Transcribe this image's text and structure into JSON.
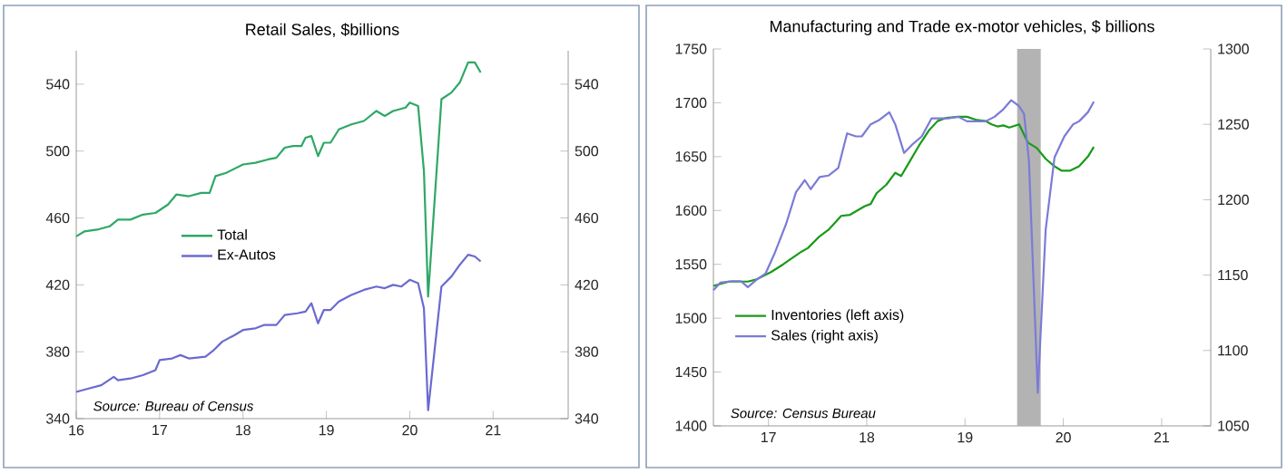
{
  "chart_data": [
    {
      "type": "line",
      "title": "Retail Sales, $billions",
      "xlim": [
        16,
        21.9
      ],
      "xticks": [
        16,
        17,
        18,
        19,
        20,
        21
      ],
      "ylim": [
        340,
        560
      ],
      "yticks": [
        340,
        380,
        420,
        460,
        500,
        540
      ],
      "y2lim": [
        340,
        560
      ],
      "y2ticks": [
        340,
        380,
        420,
        460,
        500,
        540
      ],
      "legend": "left",
      "annotations": [
        "Source: Bureau of Census"
      ],
      "series": [
        {
          "name": "Total",
          "color": "#2ea866",
          "x": [
            16.0,
            16.1,
            16.25,
            16.4,
            16.5,
            16.65,
            16.8,
            16.95,
            17.1,
            17.2,
            17.35,
            17.5,
            17.6,
            17.67,
            17.8,
            18.0,
            18.15,
            18.3,
            18.4,
            18.5,
            18.6,
            18.7,
            18.75,
            18.82,
            18.9,
            18.97,
            19.05,
            19.15,
            19.3,
            19.45,
            19.6,
            19.7,
            19.8,
            19.95,
            20.0,
            20.1,
            20.17,
            20.22,
            20.38,
            20.5,
            20.6,
            20.7,
            20.78,
            20.85
          ],
          "values": [
            449,
            452,
            453,
            455,
            459,
            459,
            462,
            463,
            468,
            474,
            473,
            475,
            475,
            485,
            487,
            492,
            493,
            495,
            496,
            502,
            503,
            503,
            508,
            509,
            497,
            505,
            505,
            513,
            516,
            518,
            524,
            521,
            524,
            526,
            529,
            527,
            488,
            413,
            531,
            535,
            541,
            553,
            553,
            547
          ]
        },
        {
          "name": "Ex-Autos",
          "color": "#6a6ad0",
          "x": [
            16.0,
            16.15,
            16.3,
            16.45,
            16.5,
            16.65,
            16.8,
            16.95,
            17.0,
            17.15,
            17.25,
            17.35,
            17.55,
            17.65,
            17.75,
            17.9,
            18.0,
            18.15,
            18.25,
            18.4,
            18.5,
            18.65,
            18.75,
            18.82,
            18.9,
            18.97,
            19.05,
            19.15,
            19.3,
            19.45,
            19.6,
            19.7,
            19.8,
            19.9,
            20.0,
            20.1,
            20.17,
            20.22,
            20.38,
            20.5,
            20.6,
            20.7,
            20.78,
            20.85
          ],
          "values": [
            356,
            358,
            360,
            365,
            363,
            364,
            366,
            369,
            375,
            376,
            378,
            376,
            377,
            381,
            386,
            390,
            393,
            394,
            396,
            396,
            402,
            403,
            404,
            409,
            397,
            405,
            405,
            410,
            414,
            417,
            419,
            418,
            420,
            419,
            423,
            421,
            406,
            345,
            419,
            425,
            432,
            438,
            437,
            434
          ]
        }
      ]
    },
    {
      "type": "line",
      "title": "Manufacturing and Trade ex-motor vehicles, $ billions",
      "xlim": [
        16.94,
        22
      ],
      "xticks": [
        {
          "value": 17.5,
          "label": "17"
        },
        {
          "value": 18.5,
          "label": "18"
        },
        {
          "value": 19.5,
          "label": "19"
        },
        {
          "value": 20.5,
          "label": "20"
        },
        {
          "value": 21.5,
          "label": "21"
        }
      ],
      "ylim": [
        1400,
        1750
      ],
      "yticks": [
        1400,
        1450,
        1500,
        1550,
        1600,
        1650,
        1700,
        1750
      ],
      "y2lim": [
        1050,
        1300
      ],
      "y2ticks": [
        1050,
        1100,
        1150,
        1200,
        1250,
        1300
      ],
      "legend": "bottom left",
      "annotations": [
        "Source: Census Bureau"
      ],
      "bands": [
        {
          "axis": "x",
          "from": 20.03,
          "to": 20.27,
          "color": "#b3b3b3"
        }
      ],
      "series": [
        {
          "name": "Inventories (left axis)",
          "color": "#189a18",
          "x": [
            16.94,
            17.1,
            17.29,
            17.38,
            17.53,
            17.65,
            17.84,
            17.9,
            18.02,
            18.11,
            18.24,
            18.33,
            18.48,
            18.54,
            18.6,
            18.7,
            18.79,
            18.85,
            18.94,
            19.03,
            19.13,
            19.22,
            19.31,
            19.43,
            19.52,
            19.62,
            19.71,
            19.77,
            19.83,
            19.89,
            19.95,
            20.05,
            20.14,
            20.23,
            20.32,
            20.41,
            20.48,
            20.57,
            20.66,
            20.75,
            20.81
          ],
          "values": [
            1530,
            1534,
            1534,
            1536,
            1543,
            1550,
            1562,
            1565,
            1576,
            1582,
            1595,
            1596,
            1604,
            1606,
            1616,
            1624,
            1635,
            1632,
            1646,
            1660,
            1674,
            1683,
            1686,
            1687,
            1687,
            1684,
            1683,
            1680,
            1678,
            1679,
            1677,
            1680,
            1663,
            1658,
            1648,
            1641,
            1637,
            1637,
            1641,
            1650,
            1659
          ]
        },
        {
          "name": "Sales (right axis)",
          "color": "#7b7bd8",
          "axis": "y2",
          "x": [
            16.94,
            17.01,
            17.13,
            17.22,
            17.29,
            17.38,
            17.47,
            17.56,
            17.68,
            17.78,
            17.87,
            17.93,
            18.02,
            18.11,
            18.21,
            18.3,
            18.39,
            18.45,
            18.54,
            18.63,
            18.73,
            18.79,
            18.88,
            18.97,
            19.06,
            19.16,
            19.25,
            19.34,
            19.43,
            19.52,
            19.62,
            19.71,
            19.8,
            19.89,
            19.97,
            20.05,
            20.1,
            20.15,
            20.24,
            20.32,
            20.41,
            20.51,
            20.6,
            20.66,
            20.75,
            20.81
          ],
          "values": [
            1140,
            1145,
            1146,
            1146,
            1142,
            1147,
            1151,
            1164,
            1184,
            1205,
            1213,
            1207,
            1215,
            1216,
            1221,
            1244,
            1242,
            1242,
            1250,
            1253,
            1258,
            1250,
            1231,
            1237,
            1242,
            1254,
            1254,
            1254,
            1255,
            1252,
            1252,
            1252,
            1255,
            1260,
            1266,
            1262,
            1257,
            1226,
            1072,
            1180,
            1228,
            1242,
            1250,
            1252,
            1258,
            1265
          ]
        }
      ]
    }
  ]
}
